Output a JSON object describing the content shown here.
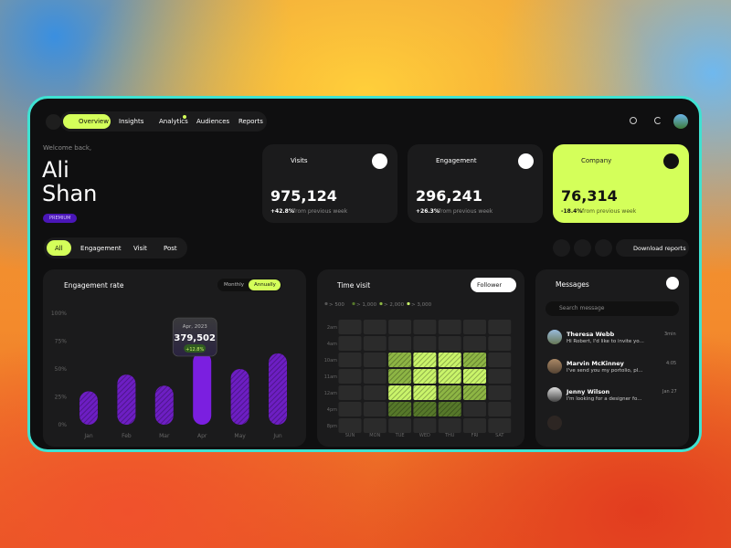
{
  "nav": {
    "items": [
      "Overview",
      "Insights",
      "Analytics",
      "Audiences",
      "Reports"
    ],
    "active": 0
  },
  "welcome": {
    "greeting": "Welcome back,",
    "first_name": "Ali",
    "last_name": "Shan",
    "badge": "PREMIUM"
  },
  "stats": [
    {
      "label": "Visits",
      "value": "975,124",
      "change": "+42.8%",
      "note": "from previous week"
    },
    {
      "label": "Engagement",
      "value": "296,241",
      "change": "+26.3%",
      "note": "from previous week"
    },
    {
      "label": "Company",
      "value": "76,314",
      "change": "-18.4%",
      "note": "from previous week"
    }
  ],
  "tabs": {
    "items": [
      "All",
      "Engagement",
      "Visit",
      "Post"
    ],
    "active": 0
  },
  "download": "Download reports",
  "engagement": {
    "title": "Engagement rate",
    "toggle": [
      "Monthly",
      "Annually"
    ],
    "toggle_active": 1,
    "chart": {
      "type": "bar",
      "categories": [
        "Jan",
        "Feb",
        "Mar",
        "Apr",
        "May",
        "Jun"
      ],
      "values": [
        30,
        45,
        35,
        65,
        50,
        64
      ],
      "color": "#7b1fe0",
      "highlight": 3,
      "ylim": [
        0,
        100
      ],
      "yticks": [
        {
          "value": 0,
          "label": "0%"
        },
        {
          "value": 25,
          "label": "25%"
        },
        {
          "value": 50,
          "label": "50%"
        },
        {
          "value": 75,
          "label": "75%"
        },
        {
          "value": 100,
          "label": "100%"
        }
      ],
      "tooltip": {
        "date": "Apr, 2023",
        "value": "379,502",
        "change": "+12.8%"
      }
    }
  },
  "time_visit": {
    "title": "Time visit",
    "filter": "Follower",
    "legend": [
      {
        "value": 500,
        "label": "> 500",
        "color": "#2b2b2b"
      },
      {
        "value": 1000,
        "label": "> 1,000",
        "color": "#56782a"
      },
      {
        "value": 2000,
        "label": "> 2,000",
        "color": "#8db544"
      },
      {
        "value": 3000,
        "label": "> 3,000",
        "color": "#c9f46a"
      }
    ],
    "rows": [
      "2am",
      "4am",
      "10am",
      "11am",
      "12am",
      "4pm",
      "8pm"
    ],
    "columns": [
      "SUN",
      "MON",
      "TUE",
      "WED",
      "THU",
      "FRI",
      "SAT"
    ],
    "values": [
      [
        500,
        500,
        500,
        500,
        500,
        500,
        500
      ],
      [
        500,
        500,
        500,
        500,
        500,
        500,
        500
      ],
      [
        500,
        500,
        2000,
        3000,
        3000,
        2000,
        500
      ],
      [
        500,
        500,
        2000,
        3000,
        3000,
        3000,
        500
      ],
      [
        500,
        500,
        3000,
        3000,
        2000,
        2000,
        500
      ],
      [
        500,
        500,
        1000,
        1000,
        1000,
        500,
        500
      ],
      [
        500,
        500,
        500,
        500,
        500,
        500,
        500
      ]
    ]
  },
  "messages": {
    "title": "Messages",
    "search": "Search message",
    "items": [
      {
        "name": "Theresa Webb",
        "text": "Hi Robert, I'd like to invite yo...",
        "time": "3min"
      },
      {
        "name": "Marvin McKinney",
        "text": "I've send you my portolio, pl...",
        "time": "4:05"
      },
      {
        "name": "Jenny Wilson",
        "text": "I'm looking for a designer fo...",
        "time": "Jan 27"
      }
    ]
  }
}
